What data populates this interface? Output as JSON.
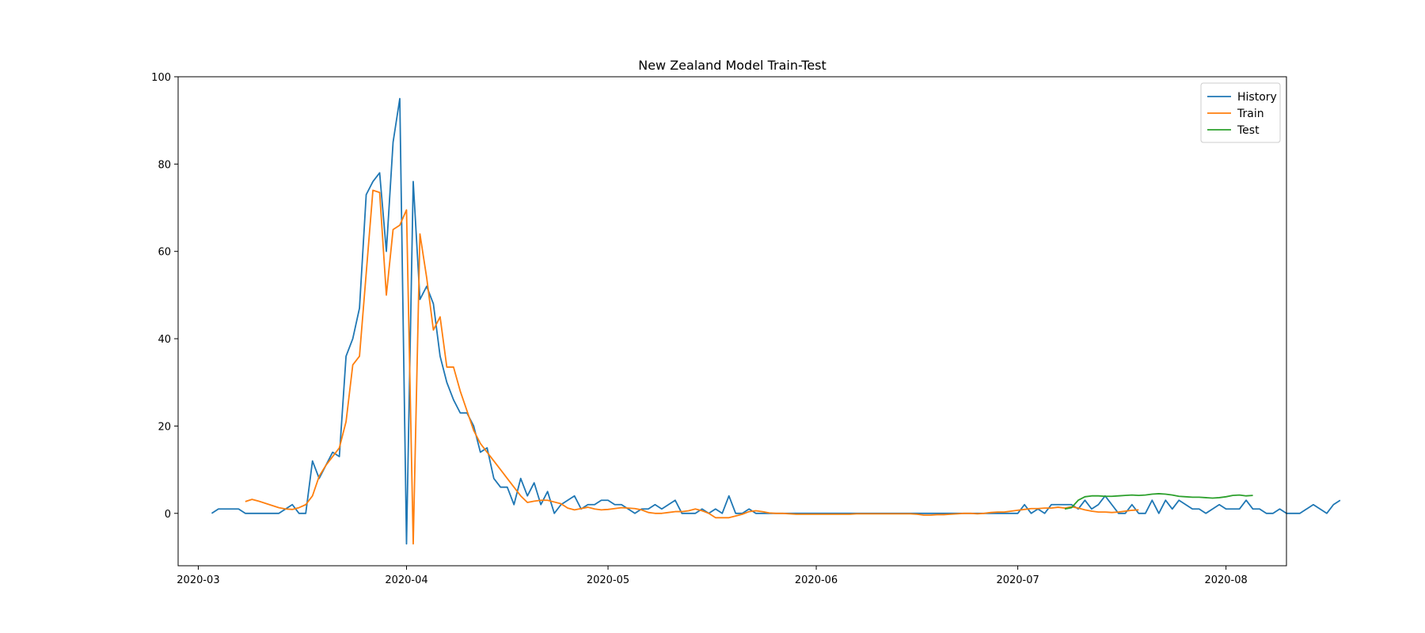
{
  "chart_data": {
    "type": "line",
    "title": "New Zealand Model Train-Test",
    "xlabel": "",
    "ylabel": "",
    "x_axis_type": "date",
    "xlim": [
      "2020-02-27",
      "2020-08-10"
    ],
    "ylim": [
      -12,
      100
    ],
    "x_ticks": [
      {
        "date": "2020-03-01",
        "label": "2020-03"
      },
      {
        "date": "2020-04-01",
        "label": "2020-04"
      },
      {
        "date": "2020-05-01",
        "label": "2020-05"
      },
      {
        "date": "2020-06-01",
        "label": "2020-06"
      },
      {
        "date": "2020-07-01",
        "label": "2020-07"
      },
      {
        "date": "2020-08-01",
        "label": "2020-08"
      }
    ],
    "y_ticks": [
      0,
      20,
      40,
      60,
      80,
      100
    ],
    "grid": false,
    "legend_position": "top-right",
    "series": [
      {
        "name": "History",
        "color": "#1f77b4",
        "start_date": "2020-03-03",
        "values": [
          0,
          1,
          1,
          1,
          1,
          0,
          0,
          0,
          0,
          0,
          0,
          1,
          2,
          0,
          0,
          12,
          8,
          11,
          14,
          13,
          36,
          40,
          47,
          73,
          76,
          78,
          60,
          85,
          95,
          -7,
          76,
          49,
          52,
          48,
          36,
          30,
          26,
          23,
          23,
          20,
          14,
          15,
          8,
          6,
          6,
          2,
          8,
          4,
          7,
          2,
          5,
          0,
          2,
          3,
          4,
          1,
          2,
          2,
          3,
          3,
          2,
          2,
          1,
          0,
          1,
          1,
          2,
          1,
          2,
          3,
          0,
          0,
          0,
          1,
          0,
          1,
          0,
          4,
          0,
          0,
          1,
          0,
          0,
          0,
          0,
          0,
          0,
          0,
          0,
          0,
          0,
          0,
          0,
          0,
          0,
          0,
          0,
          0,
          0,
          0,
          0,
          0,
          0,
          0,
          0,
          0,
          0,
          0,
          0,
          0,
          0,
          0,
          0,
          0,
          0,
          0,
          0,
          0,
          0,
          0,
          0,
          2,
          0,
          1,
          0,
          2,
          2,
          2,
          2,
          1,
          3,
          1,
          2,
          4,
          2,
          0,
          0,
          2,
          0,
          0,
          3,
          0,
          3,
          1,
          3,
          2,
          1,
          1,
          0,
          1,
          2,
          1,
          1,
          1,
          3,
          1,
          1,
          0,
          0,
          1,
          0,
          0,
          0,
          1,
          2,
          1,
          0,
          2,
          3
        ]
      },
      {
        "name": "Train",
        "color": "#ff7f0e",
        "start_date": "2020-03-08",
        "values": [
          2.7,
          3.2,
          2.8,
          2.3,
          1.8,
          1.3,
          1.0,
          0.9,
          1.3,
          2.0,
          4.0,
          8.5,
          11.0,
          13.0,
          15.0,
          21.0,
          34.0,
          36.0,
          55.0,
          74.0,
          73.5,
          50.0,
          65.0,
          66.0,
          69.5,
          -7.0,
          64.0,
          54.0,
          42.0,
          45.0,
          33.5,
          33.5,
          28.0,
          23.5,
          19.0,
          16.0,
          14.0,
          12.0,
          10.0,
          8.0,
          6.0,
          4.0,
          2.5,
          2.8,
          3.0,
          3.0,
          2.6,
          2.2,
          1.2,
          0.8,
          1.1,
          1.4,
          1.0,
          0.8,
          0.9,
          1.1,
          1.3,
          1.2,
          1.1,
          0.8,
          0.2,
          0.0,
          0.0,
          0.2,
          0.4,
          0.4,
          0.6,
          1.0,
          0.6,
          0.0,
          -1.0,
          -1.0,
          -1.0,
          -0.6,
          -0.2,
          0.4,
          0.6,
          0.4,
          0.1,
          0.0,
          0.0,
          -0.1,
          -0.2,
          -0.2,
          -0.2,
          -0.2,
          -0.2,
          -0.2,
          -0.2,
          -0.2,
          -0.2,
          -0.1,
          -0.1,
          -0.1,
          -0.1,
          -0.1,
          -0.1,
          -0.1,
          -0.1,
          -0.1,
          -0.2,
          -0.4,
          -0.4,
          -0.3,
          -0.3,
          -0.2,
          -0.1,
          0.0,
          0.0,
          -0.1,
          0.0,
          0.2,
          0.3,
          0.3,
          0.5,
          0.7,
          0.9,
          1.1,
          1.1,
          1.2,
          1.2,
          1.4,
          1.2,
          1.5,
          1.2,
          0.8,
          0.5,
          0.3,
          0.3,
          0.2,
          0.3,
          0.5,
          0.7,
          0.8
        ]
      },
      {
        "name": "Test",
        "color": "#2ca02c",
        "start_date": "2020-07-08",
        "values": [
          1.0,
          1.3,
          3.0,
          3.8,
          4.0,
          4.0,
          3.9,
          3.9,
          4.0,
          4.1,
          4.2,
          4.1,
          4.2,
          4.4,
          4.5,
          4.4,
          4.2,
          3.9,
          3.8,
          3.7,
          3.7,
          3.6,
          3.5,
          3.6,
          3.8,
          4.1,
          4.2,
          4.0,
          4.1
        ]
      }
    ]
  }
}
